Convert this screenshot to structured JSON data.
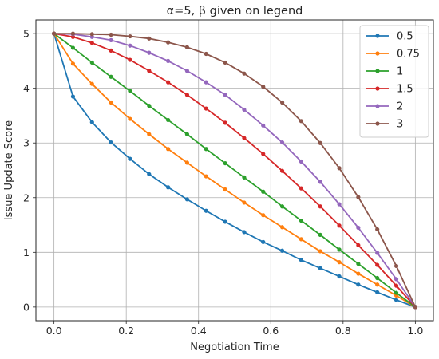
{
  "chart_data": {
    "type": "line",
    "title": "α=5, β given on legend",
    "xlabel": "Negotiation Time",
    "ylabel": "Issue Update Score",
    "xlim": [
      -0.05,
      1.05
    ],
    "ylim": [
      -0.25,
      5.25
    ],
    "xticks": [
      0.0,
      0.2,
      0.4,
      0.6,
      0.8,
      1.0
    ],
    "xtick_labels": [
      "0.0",
      "0.2",
      "0.4",
      "0.6",
      "0.8",
      "1.0"
    ],
    "yticks": [
      0,
      1,
      2,
      3,
      4,
      5
    ],
    "ytick_labels": [
      "0",
      "1",
      "2",
      "3",
      "4",
      "5"
    ],
    "grid": true,
    "legend_position": "top-right",
    "x": [
      0.0,
      0.0526,
      0.1053,
      0.1579,
      0.2105,
      0.2632,
      0.3158,
      0.3684,
      0.4211,
      0.4737,
      0.5263,
      0.5789,
      0.6316,
      0.6842,
      0.7368,
      0.7895,
      0.8421,
      0.8947,
      0.9474,
      1.0
    ],
    "series": [
      {
        "name": "0.5",
        "color": "#1f77b4",
        "values": [
          5.0,
          3.85,
          3.38,
          3.01,
          2.71,
          2.43,
          2.19,
          1.97,
          1.76,
          1.56,
          1.37,
          1.19,
          1.03,
          0.86,
          0.71,
          0.56,
          0.41,
          0.27,
          0.13,
          0.0
        ]
      },
      {
        "name": "0.75",
        "color": "#ff7f0e",
        "values": [
          5.0,
          4.45,
          4.08,
          3.74,
          3.44,
          3.16,
          2.89,
          2.64,
          2.39,
          2.15,
          1.91,
          1.68,
          1.46,
          1.24,
          1.02,
          0.82,
          0.61,
          0.41,
          0.21,
          0.0
        ]
      },
      {
        "name": "1",
        "color": "#2ca02c",
        "values": [
          5.0,
          4.74,
          4.47,
          4.21,
          3.95,
          3.68,
          3.42,
          3.16,
          2.89,
          2.63,
          2.37,
          2.11,
          1.84,
          1.58,
          1.32,
          1.05,
          0.79,
          0.53,
          0.26,
          0.0
        ]
      },
      {
        "name": "1.5",
        "color": "#d62728",
        "values": [
          5.0,
          4.94,
          4.83,
          4.69,
          4.52,
          4.32,
          4.11,
          3.88,
          3.63,
          3.37,
          3.09,
          2.8,
          2.49,
          2.17,
          1.84,
          1.49,
          1.13,
          0.77,
          0.39,
          0.0
        ]
      },
      {
        "name": "2",
        "color": "#9467bd",
        "values": [
          5.0,
          4.99,
          4.94,
          4.88,
          4.78,
          4.65,
          4.5,
          4.32,
          4.11,
          3.88,
          3.61,
          3.32,
          3.01,
          2.66,
          2.29,
          1.88,
          1.45,
          0.99,
          0.51,
          0.0
        ]
      },
      {
        "name": "3",
        "color": "#8c564b",
        "values": [
          5.0,
          5.0,
          4.99,
          4.98,
          4.95,
          4.91,
          4.84,
          4.75,
          4.63,
          4.47,
          4.27,
          4.03,
          3.74,
          3.4,
          3.0,
          2.54,
          2.01,
          1.42,
          0.75,
          0.0
        ]
      }
    ]
  }
}
